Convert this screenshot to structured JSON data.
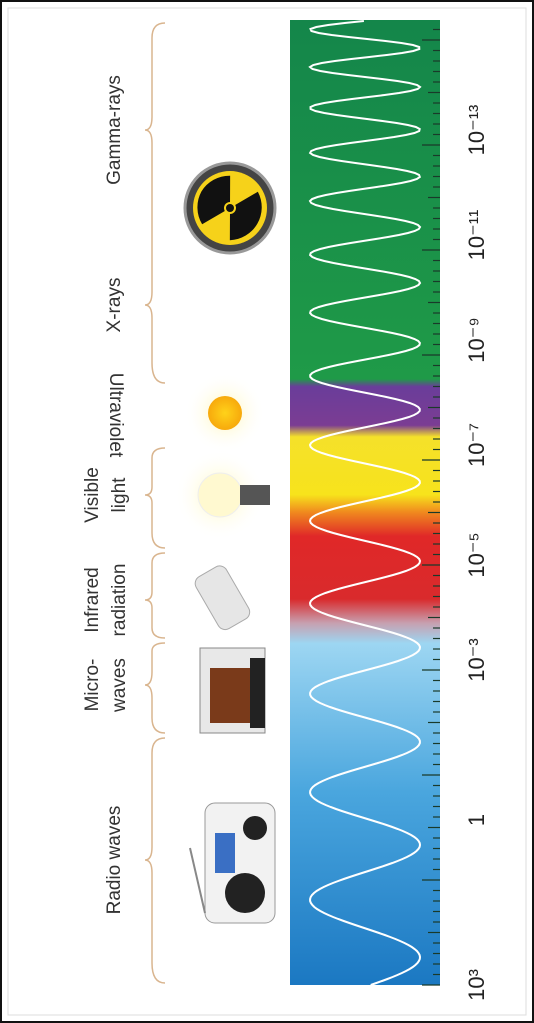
{
  "bands": [
    {
      "lines": [
        "Radio waves"
      ]
    },
    {
      "lines": [
        "Micro-",
        "waves"
      ]
    },
    {
      "lines": [
        "Infrared",
        "radiation"
      ]
    },
    {
      "lines": [
        "Visible",
        "light"
      ]
    },
    {
      "lines": [
        "Ultraviolet"
      ]
    },
    {
      "lines": [
        "X-rays"
      ]
    },
    {
      "lines": [
        "Gamma-rays"
      ]
    }
  ],
  "wavelength_labels": [
    "10³",
    "1",
    "10⁻³",
    "10⁻⁵",
    "10⁻⁷",
    "10⁻⁹",
    "10⁻¹¹",
    "10⁻¹³"
  ]
}
